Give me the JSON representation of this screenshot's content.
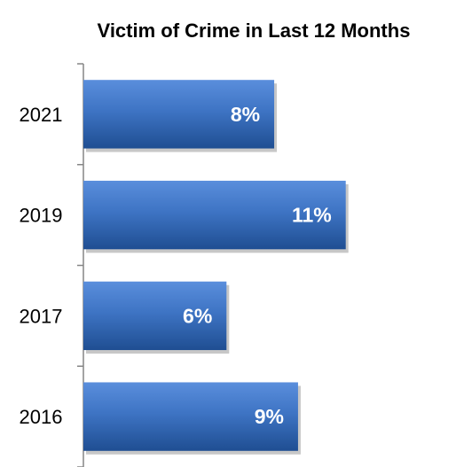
{
  "chart_data": {
    "type": "bar",
    "orientation": "horizontal",
    "title": "Victim of Crime in Last 12 Months",
    "categories": [
      "2021",
      "2019",
      "2017",
      "2016"
    ],
    "values": [
      8,
      11,
      6,
      9
    ],
    "data_labels": [
      "8%",
      "11%",
      "6%",
      "9%"
    ],
    "unit": "%",
    "xlim": [
      0,
      15.4
    ],
    "grid": false,
    "legend": "none",
    "bar_color": "#3E74C4",
    "bar_color_light": "#5A8EDC",
    "bar_color_dark": "#1F4E92"
  }
}
